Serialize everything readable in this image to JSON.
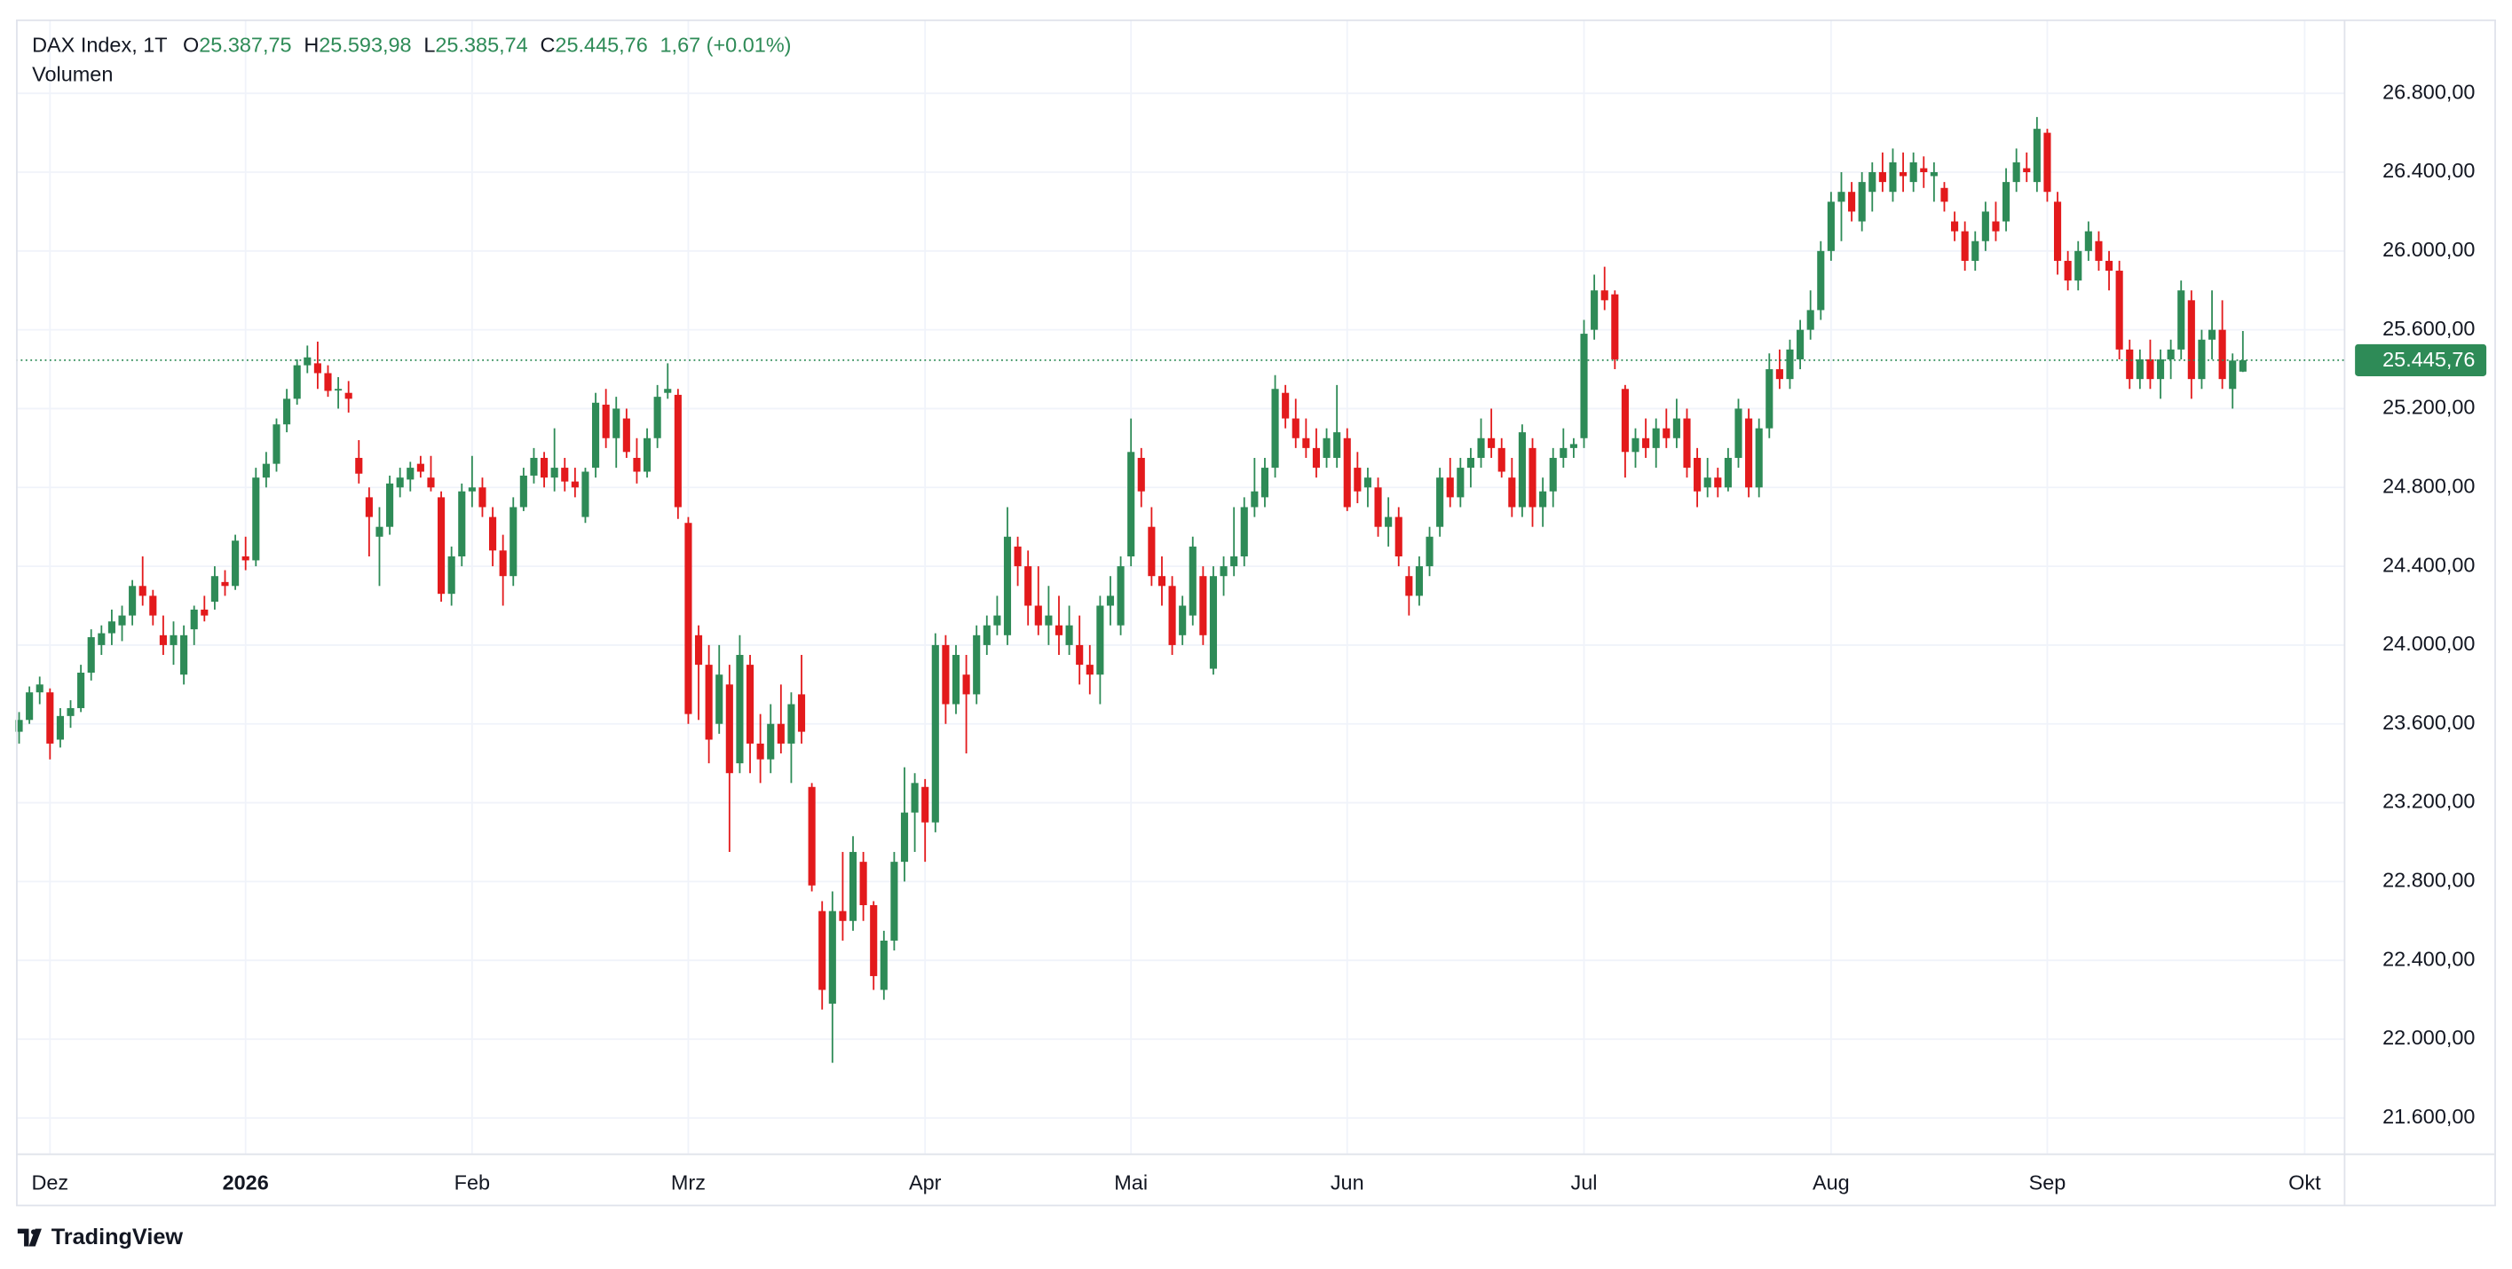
{
  "chart_data": {
    "type": "candlestick",
    "title": "DAX Index, 1T",
    "ohlc_letters": [
      "O",
      "H",
      "L",
      "C"
    ],
    "ohlc_labels": [
      "25.387,75",
      "25.593,98",
      "25.385,74",
      "25.445,76"
    ],
    "change_label": "1,67 (+0.01%)",
    "indicator": "Volumen",
    "last_price_label": "25.445,76",
    "brand": "TradingView",
    "up_color": "#2e8b57",
    "down_color": "#e31a1c",
    "grid": true,
    "ylim": [
      21420,
      27175
    ],
    "yticks": [
      {
        "value": 21600,
        "label": "21.600,00"
      },
      {
        "value": 22000,
        "label": "22.000,00"
      },
      {
        "value": 22400,
        "label": "22.400,00"
      },
      {
        "value": 22800,
        "label": "22.800,00"
      },
      {
        "value": 23200,
        "label": "23.200,00"
      },
      {
        "value": 23600,
        "label": "23.600,00"
      },
      {
        "value": 24000,
        "label": "24.000,00"
      },
      {
        "value": 24400,
        "label": "24.400,00"
      },
      {
        "value": 24800,
        "label": "24.800,00"
      },
      {
        "value": 25200,
        "label": "25.200,00"
      },
      {
        "value": 25600,
        "label": "25.600,00"
      },
      {
        "value": 26000,
        "label": "26.000,00"
      },
      {
        "value": 26400,
        "label": "26.400,00"
      },
      {
        "value": 26800,
        "label": "26.800,00"
      }
    ],
    "xlim": [
      -0.3,
      225.8
    ],
    "xticks": [
      {
        "value": 3,
        "label": "Dez"
      },
      {
        "value": 22,
        "label": "2026"
      },
      {
        "value": 44,
        "label": "Feb"
      },
      {
        "value": 65,
        "label": "Mrz"
      },
      {
        "value": 88,
        "label": "Apr"
      },
      {
        "value": 108,
        "label": "Mai"
      },
      {
        "value": 129,
        "label": "Jun"
      },
      {
        "value": 152,
        "label": "Jul"
      },
      {
        "value": 176,
        "label": "Aug"
      },
      {
        "value": 197,
        "label": "Sep"
      },
      {
        "value": 222,
        "label": "Okt"
      }
    ],
    "open": [
      23560,
      23620,
      23760,
      23760,
      23520,
      23640,
      23680,
      23860,
      24000,
      24060,
      24100,
      24150,
      24300,
      24250,
      24050,
      24000,
      23850,
      24080,
      24180,
      24220,
      24320,
      24300,
      24450,
      24430,
      24850,
      24920,
      25120,
      25250,
      25420,
      25430,
      25380,
      25300,
      25280,
      24950,
      24750,
      24550,
      24600,
      24800,
      24840,
      24920,
      24850,
      24750,
      24260,
      24450,
      24780,
      24800,
      24650,
      24480,
      24350,
      24700,
      24860,
      24950,
      24850,
      24900,
      24830,
      24650,
      24900,
      25220,
      25050,
      25150,
      24950,
      24880,
      25050,
      25280,
      25270,
      24620,
      24050,
      23900,
      23600,
      23800,
      23400,
      23900,
      23500,
      23420,
      23600,
      23500,
      23750,
      23280,
      22650,
      22180,
      22650,
      22600,
      22900,
      22680,
      22250,
      22500,
      22900,
      23150,
      23280,
      23100,
      24000,
      23700,
      23850,
      23750,
      24000,
      24100,
      24050,
      24500,
      24400,
      24200,
      24100,
      24100,
      24000,
      24000,
      23900,
      23850,
      24200,
      24100,
      24450,
      24950,
      24600,
      24350,
      24300,
      24050,
      24150,
      24350,
      23880,
      24350,
      24400,
      24450,
      24700,
      24750,
      24900,
      25280,
      25150,
      25050,
      25000,
      24950,
      24950,
      25050,
      24900,
      24800,
      24800,
      24600,
      24650,
      24350,
      24250,
      24400,
      24600,
      24850,
      24750,
      24900,
      24950,
      25050,
      25000,
      24850,
      24700,
      25000,
      24700,
      24780,
      24950,
      25000,
      25050,
      25600,
      25800,
      25780,
      25300,
      24980,
      25050,
      25000,
      25100,
      25050,
      25150,
      24950,
      24800,
      24850,
      24800,
      24950,
      25150,
      24800,
      25100,
      25400,
      25350,
      25450,
      25600,
      25700,
      26000,
      26250,
      26300,
      26150,
      26300,
      26400,
      26300,
      26400,
      26350,
      26420,
      26380,
      26320,
      26150,
      26100,
      25950,
      26050,
      26150,
      26150,
      26350,
      26420,
      26350,
      26600,
      26250,
      25950,
      25850,
      26000,
      26050,
      25950,
      25900,
      25500,
      25350,
      25450,
      25350,
      25450,
      25500,
      25750,
      25350,
      25550,
      25600,
      25300,
      25387.75
    ],
    "high": [
      23660,
      23790,
      23840,
      23780,
      23680,
      23720,
      23900,
      24080,
      24100,
      24180,
      24200,
      24330,
      24450,
      24280,
      24150,
      24120,
      24100,
      24200,
      24250,
      24400,
      24380,
      24560,
      24550,
      24900,
      24980,
      25150,
      25300,
      25450,
      25520,
      25540,
      25420,
      25360,
      25340,
      25040,
      24800,
      24700,
      24860,
      24900,
      24930,
      24960,
      24960,
      24780,
      24500,
      24820,
      24960,
      24850,
      24700,
      24560,
      24750,
      24900,
      25000,
      24980,
      25100,
      24950,
      24900,
      24900,
      25280,
      25300,
      25260,
      25200,
      25050,
      25100,
      25320,
      25430,
      25300,
      24650,
      24100,
      24000,
      24000,
      23900,
      24050,
      23950,
      23650,
      23700,
      23800,
      23760,
      23950,
      23300,
      22700,
      22750,
      22950,
      23030,
      22950,
      22700,
      22550,
      22950,
      23380,
      23350,
      23320,
      24060,
      24050,
      24000,
      23950,
      24100,
      24150,
      24250,
      24700,
      24550,
      24480,
      24400,
      24300,
      24250,
      24200,
      24150,
      24000,
      24250,
      24350,
      24450,
      25150,
      25000,
      24700,
      24450,
      24350,
      24250,
      24550,
      24400,
      24400,
      24450,
      24700,
      24750,
      24950,
      24950,
      25370,
      25320,
      25250,
      25150,
      25100,
      25100,
      25320,
      25100,
      24980,
      24900,
      24850,
      24750,
      24700,
      24400,
      24450,
      24600,
      24900,
      24950,
      24950,
      25000,
      25150,
      25200,
      25050,
      24950,
      25120,
      25050,
      24850,
      25000,
      25100,
      25050,
      25650,
      25880,
      25920,
      25800,
      25320,
      25100,
      25150,
      25150,
      25200,
      25250,
      25200,
      25000,
      24950,
      24900,
      25000,
      25250,
      25200,
      25150,
      25480,
      25500,
      25550,
      25650,
      25800,
      26050,
      26300,
      26400,
      26350,
      26400,
      26450,
      26500,
      26520,
      26500,
      26500,
      26480,
      26450,
      26350,
      26200,
      26150,
      26100,
      26250,
      26250,
      26420,
      26520,
      26500,
      26680,
      26620,
      26300,
      26000,
      26050,
      26150,
      26100,
      26000,
      25950,
      25550,
      25500,
      25550,
      25500,
      25550,
      25850,
      25800,
      25600,
      25800,
      25750,
      25480,
      25593.98
    ],
    "low": [
      23500,
      23600,
      23700,
      23420,
      23480,
      23580,
      23660,
      23820,
      23950,
      24000,
      24020,
      24100,
      24200,
      24100,
      23950,
      23900,
      23800,
      24000,
      24120,
      24180,
      24250,
      24280,
      24380,
      24400,
      24800,
      24880,
      25080,
      25220,
      25380,
      25300,
      25260,
      25200,
      25180,
      24820,
      24450,
      24300,
      24560,
      24750,
      24780,
      24850,
      24780,
      24220,
      24200,
      24400,
      24700,
      24650,
      24400,
      24200,
      24300,
      24680,
      24820,
      24800,
      24780,
      24780,
      24750,
      24620,
      24850,
      25000,
      24900,
      24950,
      24820,
      24850,
      25000,
      25250,
      24640,
      23600,
      23620,
      23400,
      23550,
      22950,
      23350,
      23350,
      23300,
      23350,
      23450,
      23300,
      23500,
      22750,
      22150,
      21880,
      22500,
      22550,
      22600,
      22250,
      22200,
      22450,
      22800,
      22950,
      22900,
      23050,
      23600,
      23650,
      23450,
      23700,
      23950,
      24050,
      24000,
      24300,
      24100,
      24050,
      24000,
      23950,
      23950,
      23800,
      23750,
      23700,
      24100,
      24050,
      24400,
      24700,
      24300,
      24200,
      23950,
      24000,
      24100,
      24000,
      23850,
      24250,
      24350,
      24400,
      24650,
      24700,
      24850,
      25100,
      25000,
      24950,
      24850,
      24900,
      24900,
      24680,
      24720,
      24700,
      24550,
      24500,
      24400,
      24150,
      24200,
      24350,
      24550,
      24700,
      24700,
      24800,
      24900,
      24950,
      24850,
      24650,
      24650,
      24600,
      24600,
      24700,
      24900,
      24950,
      25000,
      25550,
      25700,
      25400,
      24850,
      24900,
      24950,
      24900,
      25000,
      25000,
      24850,
      24700,
      24750,
      24750,
      24780,
      24900,
      24750,
      24750,
      25050,
      25300,
      25300,
      25400,
      25550,
      25650,
      25950,
      26050,
      26150,
      26100,
      26200,
      26300,
      26250,
      26300,
      26300,
      26320,
      26250,
      26200,
      26050,
      25900,
      25900,
      26000,
      26050,
      26100,
      26300,
      26350,
      26300,
      26250,
      25880,
      25800,
      25800,
      25950,
      25900,
      25800,
      25450,
      25300,
      25300,
      25300,
      25250,
      25350,
      25450,
      25250,
      25300,
      25450,
      25300,
      25200,
      25385.74
    ],
    "close": [
      23620,
      23760,
      23800,
      23500,
      23640,
      23680,
      23860,
      24040,
      24060,
      24120,
      24150,
      24300,
      24250,
      24150,
      24000,
      24050,
      24050,
      24180,
      24150,
      24350,
      24300,
      24530,
      24430,
      24850,
      24920,
      25120,
      25250,
      25420,
      25460,
      25380,
      25290,
      25300,
      25250,
      24870,
      24650,
      24600,
      24820,
      24850,
      24900,
      24880,
      24800,
      24260,
      24450,
      24780,
      24800,
      24700,
      24480,
      24350,
      24700,
      24860,
      24950,
      24850,
      24900,
      24830,
      24800,
      24880,
      25230,
      25050,
      25200,
      24980,
      24880,
      25050,
      25260,
      25300,
      24700,
      23650,
      23900,
      23520,
      23850,
      23350,
      23950,
      23500,
      23420,
      23600,
      23500,
      23700,
      23560,
      22780,
      22250,
      22650,
      22600,
      22950,
      22680,
      22320,
      22500,
      22900,
      23150,
      23300,
      23100,
      24000,
      23700,
      23950,
      23750,
      24050,
      24100,
      24150,
      24550,
      24400,
      24200,
      24100,
      24150,
      24050,
      24100,
      23900,
      23850,
      24200,
      24250,
      24400,
      24980,
      24780,
      24350,
      24300,
      24000,
      24200,
      24500,
      24050,
      24350,
      24400,
      24450,
      24700,
      24780,
      24900,
      25300,
      25150,
      25050,
      25000,
      24900,
      25050,
      25080,
      24700,
      24780,
      24850,
      24600,
      24650,
      24450,
      24250,
      24400,
      24550,
      24850,
      24750,
      24900,
      24950,
      25050,
      25000,
      24880,
      24700,
      25080,
      24700,
      24780,
      24950,
      25000,
      25020,
      25580,
      25800,
      25750,
      25450,
      24980,
      25050,
      25000,
      25100,
      25050,
      25150,
      24900,
      24780,
      24850,
      24800,
      24950,
      25200,
      24800,
      25100,
      25400,
      25350,
      25500,
      25600,
      25700,
      26000,
      26250,
      26300,
      26200,
      26350,
      26400,
      26350,
      26450,
      26380,
      26450,
      26400,
      26400,
      26250,
      26100,
      25950,
      26050,
      26200,
      26100,
      26350,
      26450,
      26400,
      26620,
      26300,
      25950,
      25850,
      26000,
      26100,
      25950,
      25900,
      25500,
      25350,
      25450,
      25350,
      25450,
      25500,
      25800,
      25350,
      25550,
      25600,
      25350,
      25444.09,
      25445.76
    ]
  }
}
